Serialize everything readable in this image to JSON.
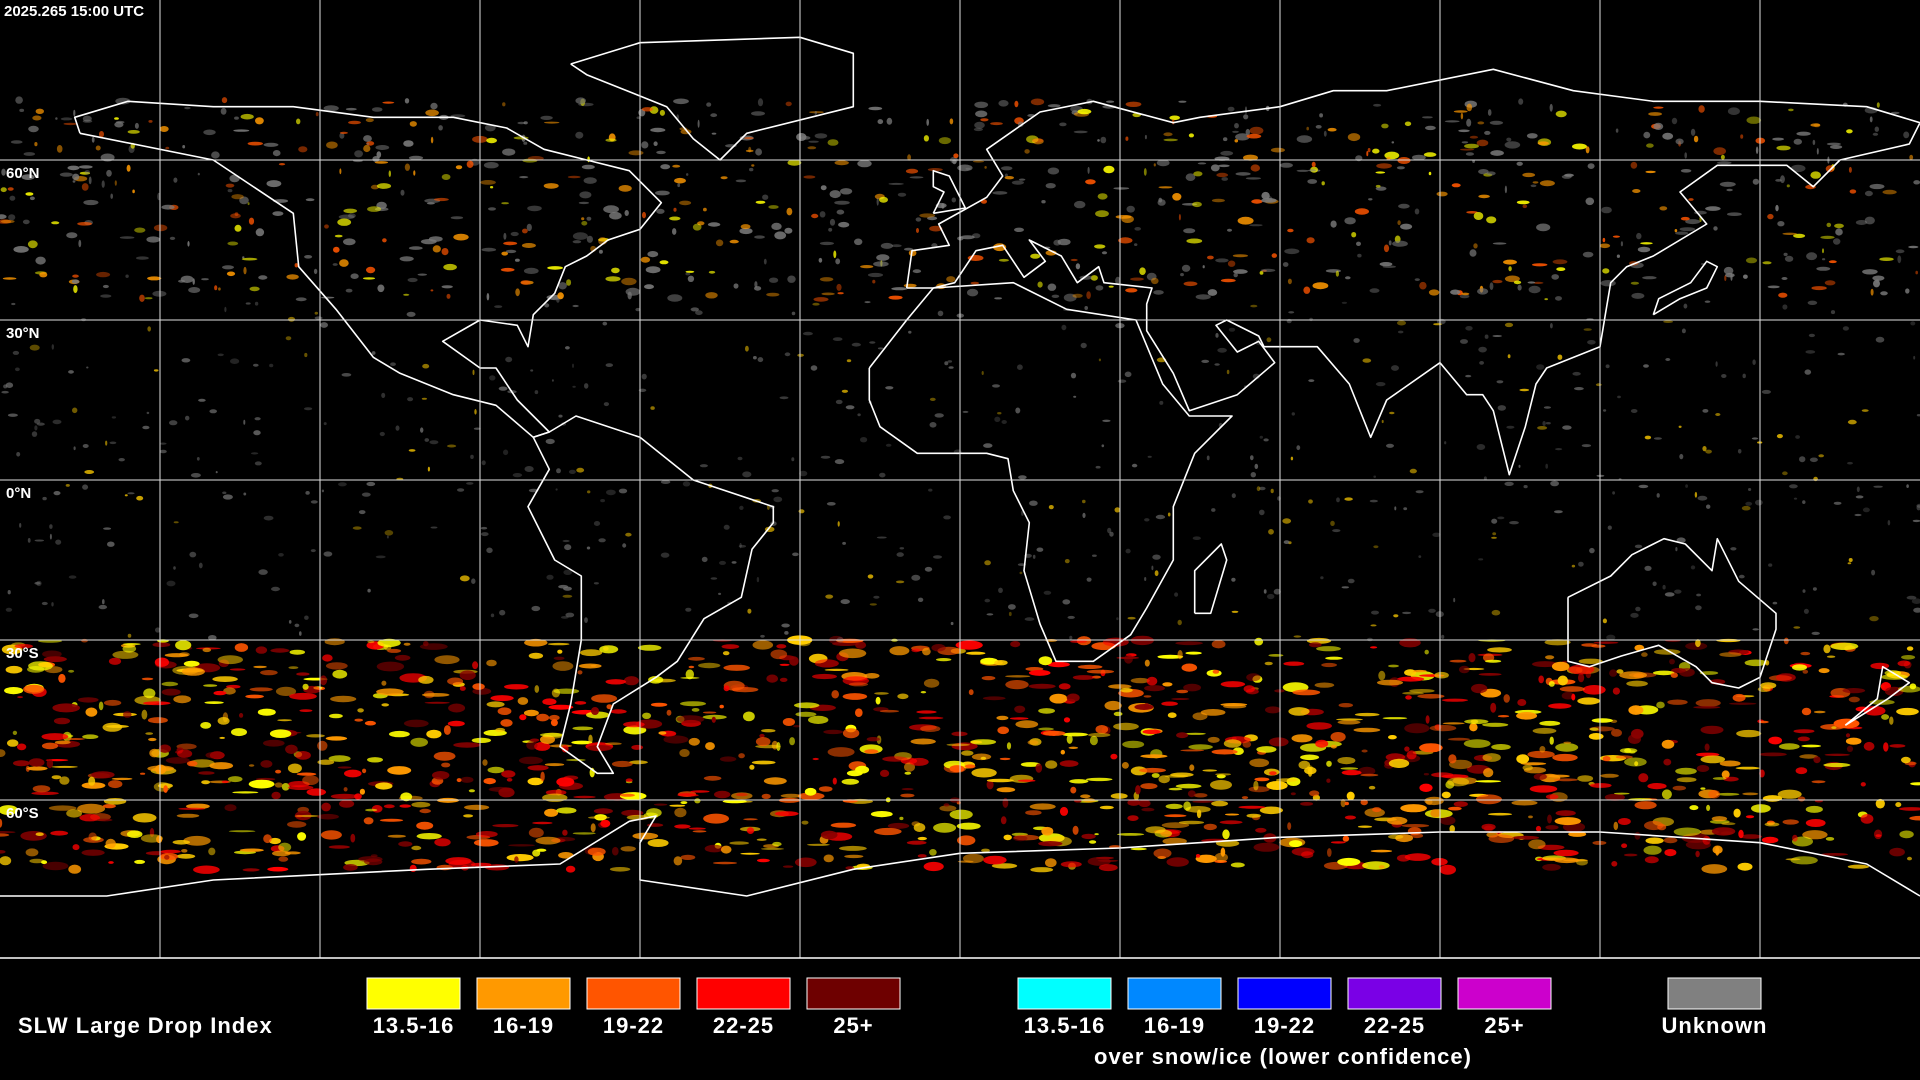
{
  "timestamp": "2025.265 15:00 UTC",
  "map": {
    "lat_labels": [
      "60°N",
      "30°N",
      "0°N",
      "30°S",
      "60°S"
    ]
  },
  "legend": {
    "title": "SLW Large Drop Index",
    "groups": [
      {
        "items": [
          {
            "label": "13.5-16",
            "color": "#ffff00"
          },
          {
            "label": "16-19",
            "color": "#ff9900"
          },
          {
            "label": "19-22",
            "color": "#ff5500"
          },
          {
            "label": "22-25",
            "color": "#ff0000"
          },
          {
            "label": "25+",
            "color": "#6e0000"
          }
        ]
      },
      {
        "items": [
          {
            "label": "13.5-16",
            "color": "#00ffff"
          },
          {
            "label": "16-19",
            "color": "#0088ff"
          },
          {
            "label": "19-22",
            "color": "#0000ff"
          },
          {
            "label": "22-25",
            "color": "#7a00e6"
          },
          {
            "label": "25+",
            "color": "#cc00cc"
          }
        ],
        "note": "over snow/ice (lower confidence)"
      }
    ],
    "unknown": {
      "label": "Unknown",
      "color": "#808080"
    }
  }
}
